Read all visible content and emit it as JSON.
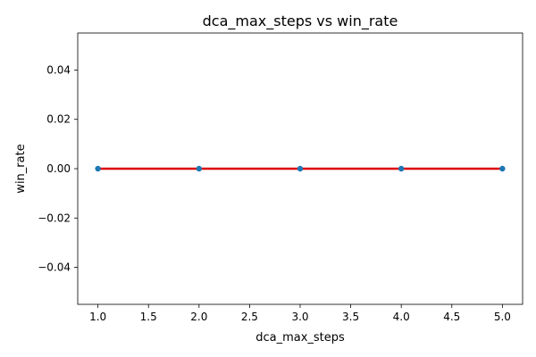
{
  "chart_data": {
    "type": "scatter",
    "title": "dca_max_steps vs win_rate",
    "xlabel": "dca_max_steps",
    "ylabel": "win_rate",
    "xlim": [
      0.8,
      5.2
    ],
    "ylim": [
      -0.055,
      0.055
    ],
    "xticks": [
      1.0,
      1.5,
      2.0,
      2.5,
      3.0,
      3.5,
      4.0,
      4.5,
      5.0
    ],
    "xtick_labels": [
      "1.0",
      "1.5",
      "2.0",
      "2.5",
      "3.0",
      "3.5",
      "4.0",
      "4.5",
      "5.0"
    ],
    "yticks": [
      -0.04,
      -0.02,
      0.0,
      0.02,
      0.04
    ],
    "ytick_labels": [
      "−0.04",
      "−0.02",
      "0.00",
      "0.02",
      "0.04"
    ],
    "grid": false,
    "legend": "none",
    "points": {
      "x": [
        1,
        2,
        3,
        4,
        5
      ],
      "y": [
        0,
        0,
        0,
        0,
        0
      ],
      "color": "#1f77b4"
    },
    "trend_line": {
      "x": [
        1,
        5
      ],
      "y": [
        0,
        0
      ],
      "color": "#dd0000"
    }
  }
}
